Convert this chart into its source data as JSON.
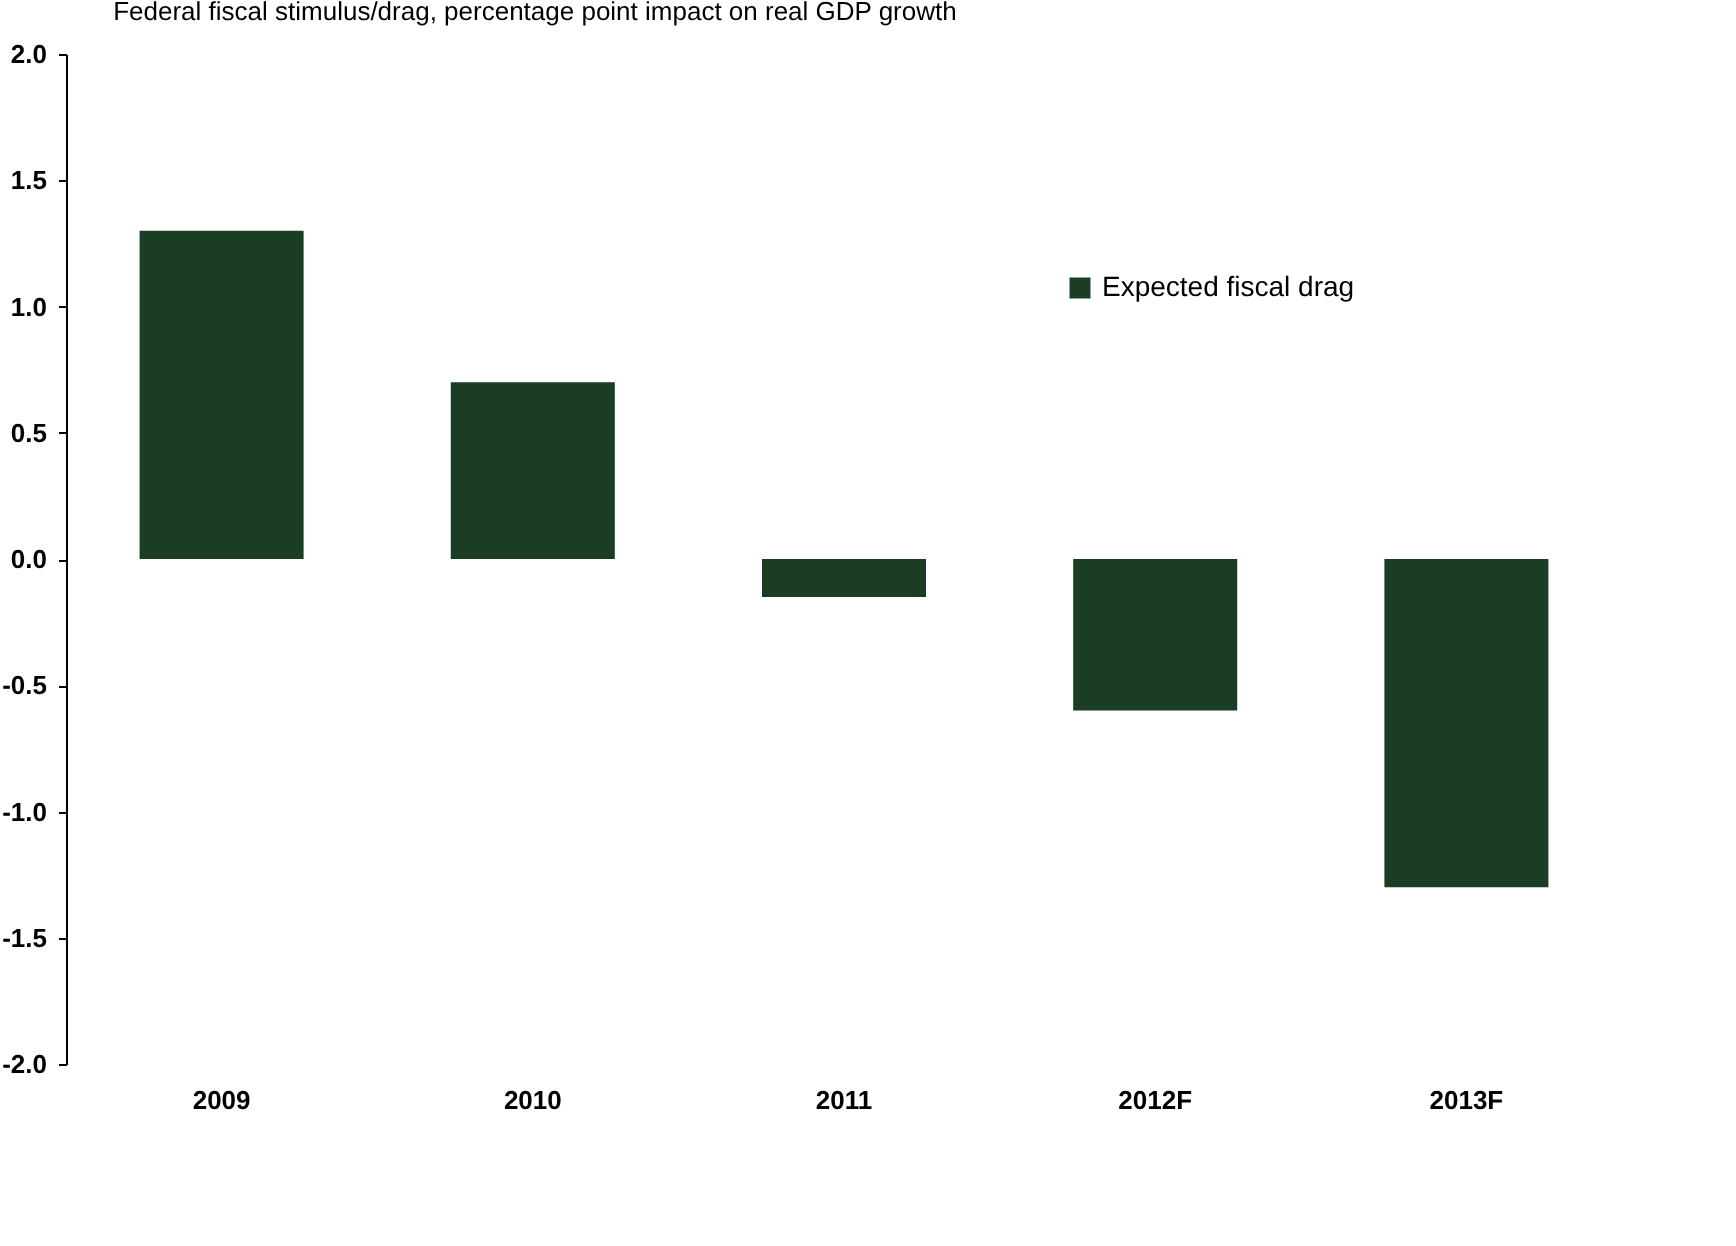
{
  "chart_data": {
    "type": "bar",
    "title": "Federal fiscal stimulus/drag, percentage point impact on real GDP growth",
    "categories": [
      "2009",
      "2010",
      "2011",
      "2012F",
      "2013F"
    ],
    "series": [
      {
        "name": "Expected fiscal drag",
        "color": "#1a3d23",
        "values": [
          1.3,
          0.7,
          -0.15,
          -0.6,
          -1.3
        ]
      }
    ],
    "ylim": [
      -2.0,
      2.0
    ],
    "yticks": [
      {
        "value": 2,
        "label": "2.0"
      },
      {
        "value": 1.5,
        "label": "1.5"
      },
      {
        "value": 1,
        "label": "1.0"
      },
      {
        "value": 0.5,
        "label": "0.5"
      },
      {
        "value": 0,
        "label": "0.0"
      },
      {
        "value": -0.5,
        "label": "-0.5"
      },
      {
        "value": -1,
        "label": "-1.0"
      },
      {
        "value": -1.5,
        "label": "-1.5"
      },
      {
        "value": -2,
        "label": "-2.0"
      }
    ],
    "legend": "right",
    "grid": false
  }
}
